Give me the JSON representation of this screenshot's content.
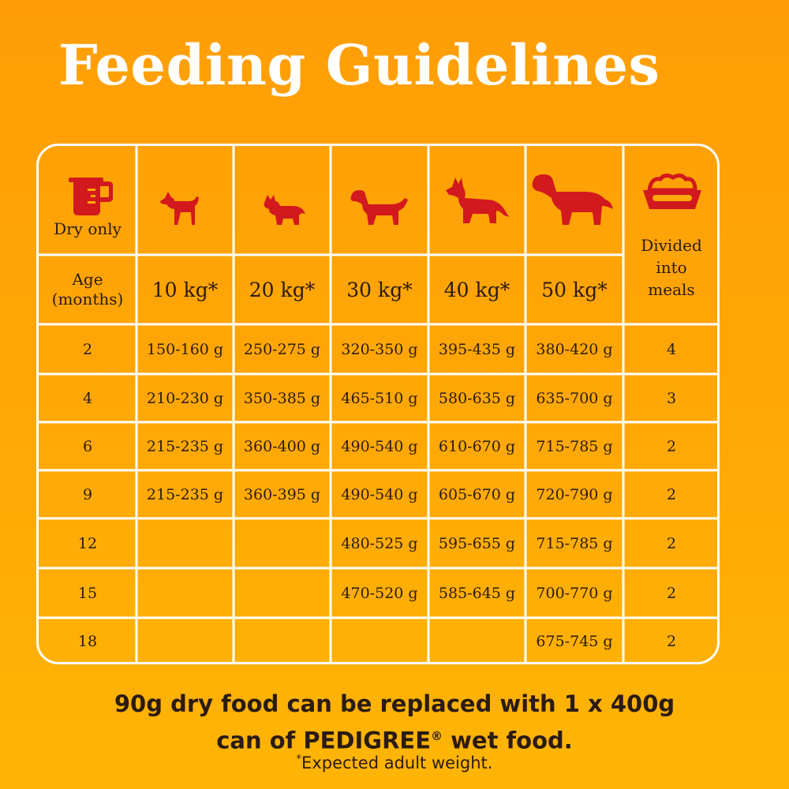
{
  "title": "Feeding Guidelines",
  "colors": {
    "background": "#ffa806",
    "icon": "#d2191e",
    "grid": "#ffffff",
    "text": "#2b1b12"
  },
  "header": {
    "dry_only": "Dry only",
    "age_label_line1": "Age",
    "age_label_line2": "(months)",
    "weights": [
      "10 kg*",
      "20 kg*",
      "30 kg*",
      "40 kg*",
      "50 kg*"
    ],
    "meals_line1": "Divided",
    "meals_line2": "into",
    "meals_line3": "meals",
    "icons": [
      "measuring-cup-icon",
      "small-dog-icon",
      "medium-dog-icon",
      "setter-dog-icon",
      "shepherd-dog-icon",
      "large-dog-icon",
      "food-bowl-icon"
    ]
  },
  "rows": [
    {
      "age": "2",
      "values": [
        "150-160 g",
        "250-275 g",
        "320-350 g",
        "395-435 g",
        "380-420 g"
      ],
      "meals": "4"
    },
    {
      "age": "4",
      "values": [
        "210-230 g",
        "350-385 g",
        "465-510 g",
        "580-635 g",
        "635-700 g"
      ],
      "meals": "3"
    },
    {
      "age": "6",
      "values": [
        "215-235 g",
        "360-400 g",
        "490-540 g",
        "610-670 g",
        "715-785 g"
      ],
      "meals": "2"
    },
    {
      "age": "9",
      "values": [
        "215-235 g",
        "360-395 g",
        "490-540 g",
        "605-670 g",
        "720-790 g"
      ],
      "meals": "2"
    },
    {
      "age": "12",
      "values": [
        "",
        "",
        "480-525 g",
        "595-655 g",
        "715-785 g"
      ],
      "meals": "2"
    },
    {
      "age": "15",
      "values": [
        "",
        "",
        "470-520 g",
        "585-645 g",
        "700-770 g"
      ],
      "meals": "2"
    },
    {
      "age": "18",
      "values": [
        "",
        "",
        "",
        "",
        "675-745 g"
      ],
      "meals": "2"
    }
  ],
  "footer": {
    "line1": "90g dry food can be replaced with 1 x 400g",
    "line2_pre": "can of PEDIGREE",
    "registered": "®",
    "line2_post": " wet food.",
    "asterisk": "*",
    "note": "Expected adult weight."
  }
}
